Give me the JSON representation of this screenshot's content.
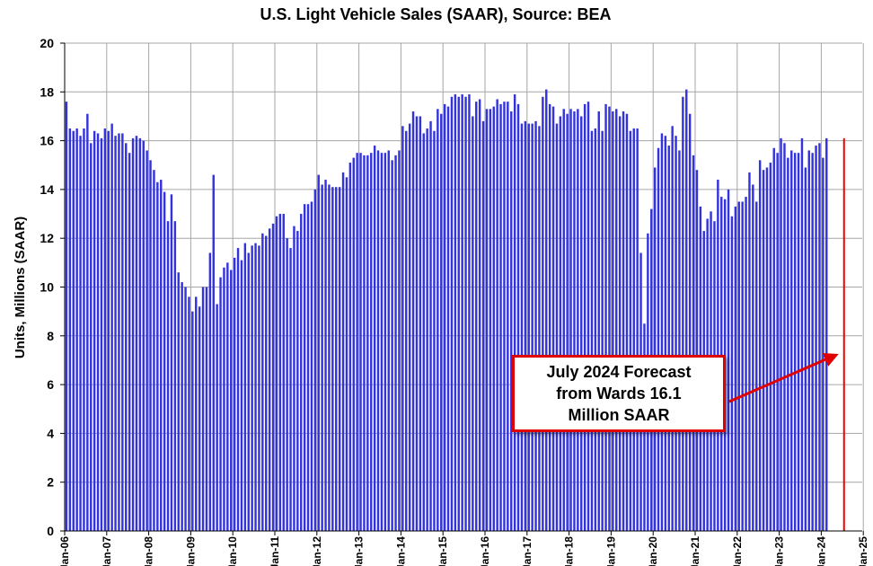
{
  "chart_data": {
    "type": "bar",
    "title": "U.S. Light Vehicle Sales (SAAR), Source: BEA",
    "ylabel": "Units, Millions (SAAR)",
    "xlabel": "",
    "ylim": [
      0,
      20
    ],
    "yticks": [
      "0",
      "2",
      "4",
      "6",
      "8",
      "10",
      "12",
      "14",
      "16",
      "18",
      "20"
    ],
    "xticks": [
      "Jan-06",
      "Jan-07",
      "Jan-08",
      "Jan-09",
      "Jan-10",
      "Jan-11",
      "Jan-12",
      "Jan-13",
      "Jan-14",
      "Jan-15",
      "Jan-16",
      "Jan-17",
      "Jan-18",
      "Jan-19",
      "Jan-20",
      "Jan-21",
      "Jan-22",
      "Jan-23",
      "Jan-24",
      "Jan-25"
    ],
    "start_month": "Jan-06",
    "grid": true,
    "bar_color": "#3333dd",
    "highlight_color": "#ee0000",
    "annotation": {
      "lines": [
        "July 2024 Forecast",
        "from Wards 16.1",
        "Million SAAR"
      ],
      "border_color": "#e00000",
      "points_to": "Jul-24"
    },
    "highlight_value": 16.1,
    "values": [
      17.6,
      16.5,
      16.4,
      16.5,
      16.2,
      16.5,
      17.1,
      15.9,
      16.4,
      16.3,
      16.1,
      16.5,
      16.4,
      16.7,
      16.2,
      16.3,
      16.3,
      15.9,
      15.5,
      16.1,
      16.2,
      16.1,
      16.0,
      15.6,
      15.2,
      14.8,
      14.3,
      14.4,
      13.9,
      12.7,
      13.8,
      12.7,
      10.6,
      10.2,
      10.0,
      9.6,
      9.0,
      9.6,
      9.2,
      10.0,
      10.0,
      11.4,
      14.6,
      9.3,
      10.4,
      10.8,
      11.0,
      10.7,
      11.2,
      11.6,
      11.1,
      11.8,
      11.4,
      11.7,
      11.8,
      11.7,
      12.2,
      12.1,
      12.4,
      12.6,
      12.9,
      13.0,
      13.0,
      12.0,
      11.6,
      12.5,
      12.3,
      13.0,
      13.4,
      13.4,
      13.5,
      14.0,
      14.6,
      14.2,
      14.4,
      14.2,
      14.1,
      14.1,
      14.1,
      14.7,
      14.5,
      15.1,
      15.3,
      15.5,
      15.5,
      15.4,
      15.4,
      15.5,
      15.8,
      15.6,
      15.5,
      15.5,
      15.6,
      15.2,
      15.4,
      15.6,
      16.6,
      16.4,
      16.7,
      17.2,
      17.0,
      17.0,
      16.3,
      16.5,
      16.8,
      16.4,
      17.3,
      17.1,
      17.5,
      17.4,
      17.8,
      17.9,
      17.8,
      17.9,
      17.8,
      17.9,
      17.0,
      17.6,
      17.7,
      16.8,
      17.3,
      17.3,
      17.4,
      17.7,
      17.5,
      17.6,
      17.6,
      17.2,
      17.9,
      17.5,
      16.7,
      16.8,
      16.7,
      16.7,
      16.8,
      16.6,
      17.8,
      18.1,
      17.5,
      17.4,
      16.7,
      17.0,
      17.3,
      17.1,
      17.3,
      17.2,
      17.3,
      17.0,
      17.5,
      17.6,
      16.4,
      16.5,
      17.2,
      16.4,
      17.5,
      17.4,
      17.2,
      17.3,
      17.0,
      17.2,
      17.1,
      16.4,
      16.5,
      16.5,
      11.4,
      8.5,
      12.2,
      13.2,
      14.9,
      15.7,
      16.3,
      16.2,
      15.8,
      16.6,
      16.2,
      15.6,
      17.8,
      18.1,
      17.1,
      15.4,
      14.8,
      13.3,
      12.3,
      12.8,
      13.1,
      12.7,
      14.4,
      13.7,
      13.6,
      14.0,
      12.9,
      13.3,
      13.5,
      13.5,
      13.7,
      14.7,
      14.2,
      13.5,
      15.2,
      14.8,
      14.9,
      15.1,
      15.7,
      15.5,
      16.1,
      15.9,
      15.3,
      15.6,
      15.5,
      15.5,
      16.1,
      14.9,
      15.6,
      15.5,
      15.8,
      15.9,
      15.3,
      16.1
    ]
  }
}
